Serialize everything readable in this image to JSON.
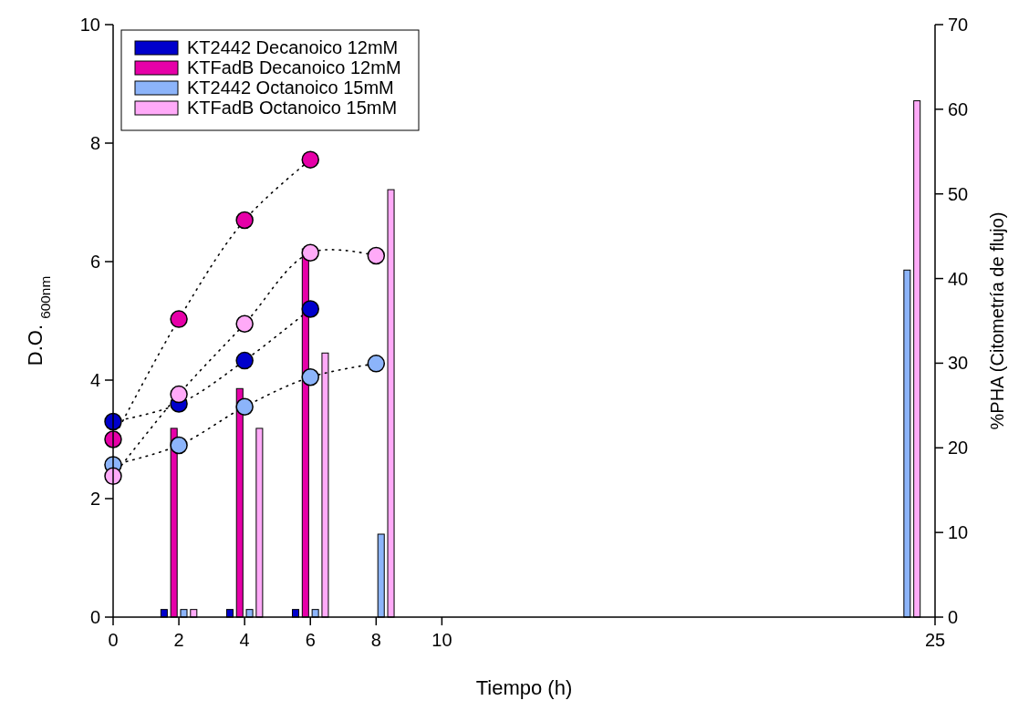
{
  "chart_data": {
    "type": "bar",
    "xlabel": "Tiempo (h)",
    "ylabel": "D.O. $_{600nm}$",
    "y2label": "%PHA (Citometría de flujo)",
    "xlim": [
      0,
      25
    ],
    "xticks": [
      0,
      2,
      4,
      6,
      8,
      10,
      25
    ],
    "ylim": [
      0,
      10
    ],
    "yticks": [
      0,
      2,
      4,
      6,
      8,
      10
    ],
    "y2lim": [
      0,
      70
    ],
    "y2ticks": [
      0,
      10,
      20,
      30,
      40,
      50,
      60,
      70
    ],
    "legend": "top left",
    "series": [
      {
        "name": "KT2442 Decanoico 12mM",
        "color": "#0000cc",
        "axis": "y2",
        "x": [
          2,
          4,
          6
        ],
        "values": [
          0.9,
          0.9,
          0.9
        ]
      },
      {
        "name": "KTFadB Decanoico 12mM",
        "color": "#e600a8",
        "axis": "y2",
        "x": [
          2,
          4,
          6
        ],
        "values": [
          22.3,
          27,
          43.5
        ]
      },
      {
        "name": "KT2442 Octanoico 15mM",
        "color": "#8cb4fa",
        "axis": "y2",
        "x": [
          2,
          4,
          6,
          8,
          24
        ],
        "values": [
          0.9,
          0.9,
          0.9,
          9.8,
          41
        ]
      },
      {
        "name": "KTFadB Octanoico 15mM",
        "color": "#ffaaf8",
        "axis": "y2",
        "x": [
          2,
          4,
          6,
          8,
          24
        ],
        "values": [
          0.9,
          22.3,
          31.2,
          50.5,
          61
        ]
      },
      {
        "type": "line",
        "color": "#0000cc",
        "marker": "circle",
        "line_style": "dotted",
        "x": [
          0,
          2,
          4,
          6
        ],
        "values": [
          3.3,
          3.6,
          4.33,
          5.2
        ]
      },
      {
        "type": "line",
        "color": "#e600a8",
        "marker": "circle",
        "line_style": "dotted",
        "x": [
          0,
          2,
          4,
          6
        ],
        "values": [
          3.0,
          5.03,
          6.7,
          7.72
        ]
      },
      {
        "type": "line",
        "color": "#8cb4fa",
        "marker": "circle",
        "line_style": "dotted",
        "x": [
          0,
          2,
          4,
          6,
          8
        ],
        "values": [
          2.57,
          2.9,
          3.55,
          4.05,
          4.28
        ]
      },
      {
        "type": "line",
        "color": "#ffaaf8",
        "marker": "circle",
        "line_style": "dotted",
        "x": [
          0,
          2,
          4,
          6,
          8
        ],
        "values": [
          2.38,
          3.76,
          4.95,
          6.15,
          6.1
        ]
      }
    ]
  }
}
